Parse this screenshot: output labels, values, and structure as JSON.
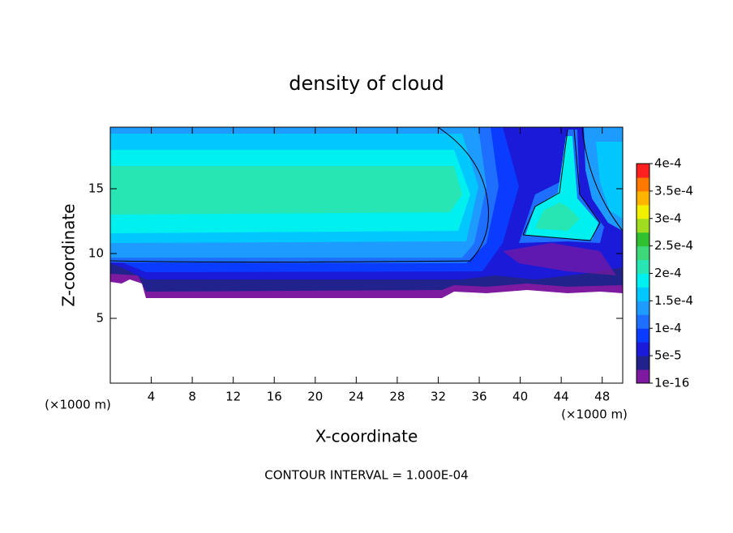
{
  "chart_data": {
    "type": "contour",
    "title": "density of cloud",
    "x_label": "X-coordinate",
    "y_label": "Z-coordinate",
    "x_unit": "(×1000 m)",
    "y_unit": "(×1000 m)",
    "note": "CONTOUR INTERVAL = 1.000E-04",
    "xlim": [
      0,
      50
    ],
    "xticks": [
      4,
      8,
      12,
      16,
      20,
      24,
      28,
      32,
      36,
      40,
      44,
      48
    ],
    "ylim": [
      0,
      19.75
    ],
    "yticks": [
      5,
      10,
      15
    ],
    "colorbar": {
      "lim": [
        1e-16,
        0.0004
      ],
      "ticks": [
        {
          "value": 1e-16,
          "label": "1e-16"
        },
        {
          "value": 5e-05,
          "label": "5e-5"
        },
        {
          "value": 0.0001,
          "label": "1e-4"
        },
        {
          "value": 0.00015,
          "label": "1.5e-4"
        },
        {
          "value": 0.0002,
          "label": "2e-4"
        },
        {
          "value": 0.00025,
          "label": "2.5e-4"
        },
        {
          "value": 0.0003,
          "label": "3e-4"
        },
        {
          "value": 0.00035,
          "label": "3.5e-4"
        },
        {
          "value": 0.0004,
          "label": "4e-4"
        }
      ],
      "colors": [
        "#7d1aa0",
        "#22228c",
        "#1a1ad8",
        "#0a3cff",
        "#1e6eff",
        "#1e9bff",
        "#00c8ff",
        "#00f0f0",
        "#28e6b4",
        "#3cd87a",
        "#30c030",
        "#a0dc20",
        "#f0f000",
        "#ffb400",
        "#ff7800",
        "#ff2020"
      ]
    }
  }
}
